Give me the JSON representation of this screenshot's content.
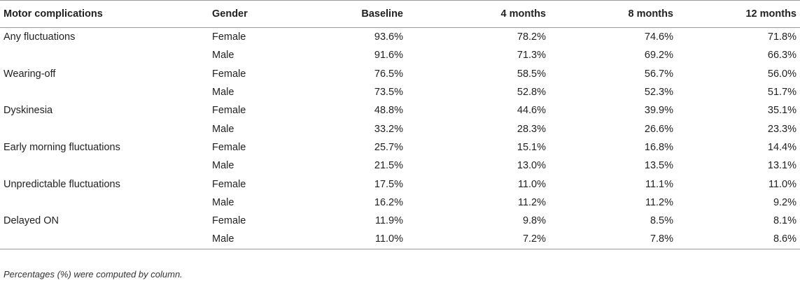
{
  "table": {
    "headers": [
      "Motor complications",
      "Gender",
      "Baseline",
      "4 months",
      "8 months",
      "12 months"
    ],
    "rows": [
      {
        "complication": "Any fluctuations",
        "gender": "Female",
        "values": [
          "93.6%",
          "78.2%",
          "74.6%",
          "71.8%"
        ]
      },
      {
        "complication": "",
        "gender": "Male",
        "values": [
          "91.6%",
          "71.3%",
          "69.2%",
          "66.3%"
        ]
      },
      {
        "complication": "Wearing-off",
        "gender": "Female",
        "values": [
          "76.5%",
          "58.5%",
          "56.7%",
          "56.0%"
        ]
      },
      {
        "complication": "",
        "gender": "Male",
        "values": [
          "73.5%",
          "52.8%",
          "52.3%",
          "51.7%"
        ]
      },
      {
        "complication": "Dyskinesia",
        "gender": "Female",
        "values": [
          "48.8%",
          "44.6%",
          "39.9%",
          "35.1%"
        ]
      },
      {
        "complication": "",
        "gender": "Male",
        "values": [
          "33.2%",
          "28.3%",
          "26.6%",
          "23.3%"
        ]
      },
      {
        "complication": "Early morning fluctuations",
        "gender": "Female",
        "values": [
          "25.7%",
          "15.1%",
          "16.8%",
          "14.4%"
        ]
      },
      {
        "complication": "",
        "gender": "Male",
        "values": [
          "21.5%",
          "13.0%",
          "13.5%",
          "13.1%"
        ]
      },
      {
        "complication": "Unpredictable fluctuations",
        "gender": "Female",
        "values": [
          "17.5%",
          "11.0%",
          "11.1%",
          "11.0%"
        ]
      },
      {
        "complication": "",
        "gender": "Male",
        "values": [
          "16.2%",
          "11.2%",
          "11.2%",
          "9.2%"
        ]
      },
      {
        "complication": "Delayed ON",
        "gender": "Female",
        "values": [
          "11.9%",
          "9.8%",
          "8.5%",
          "8.1%"
        ]
      },
      {
        "complication": "",
        "gender": "Male",
        "values": [
          "11.0%",
          "7.2%",
          "7.8%",
          "8.6%"
        ]
      }
    ]
  },
  "footnote": "Percentages (%) were computed by column."
}
